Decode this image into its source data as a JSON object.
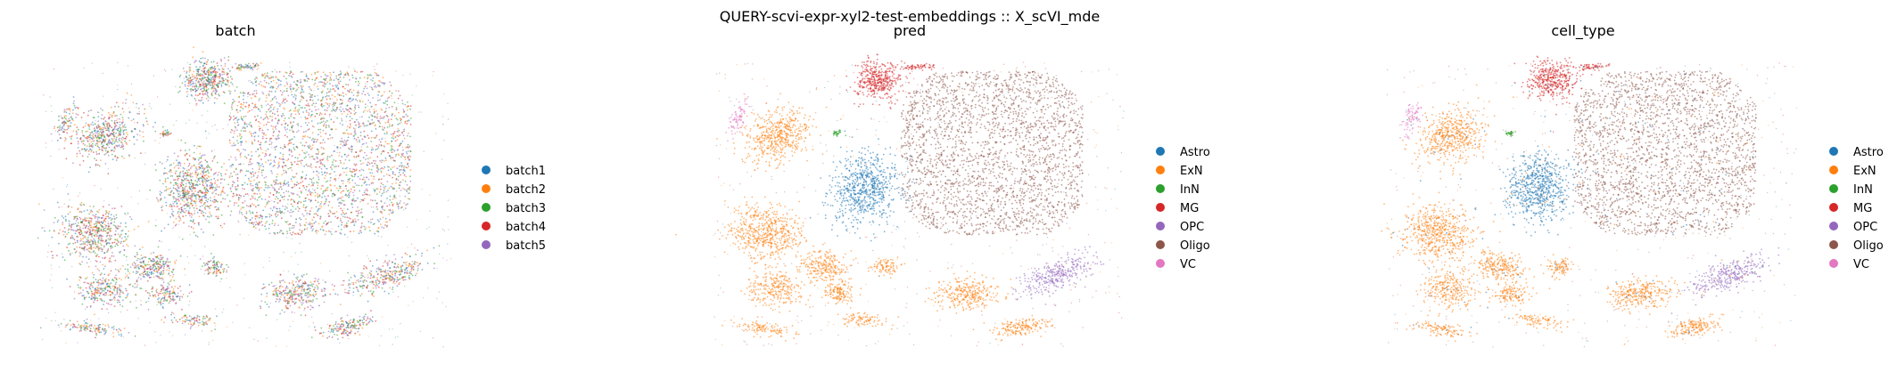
{
  "figure": {
    "suptitle": "QUERY-scvi-expr-xyl2-test-embeddings :: X_scVI_mde"
  },
  "palette": {
    "batch1": "#1f77b4",
    "batch2": "#ff7f0e",
    "batch3": "#2ca02c",
    "batch4": "#d62728",
    "batch5": "#9467bd",
    "Astro": "#1f77b4",
    "ExN": "#ff7f0e",
    "InN": "#2ca02c",
    "MG": "#d62728",
    "OPC": "#9467bd",
    "Oligo": "#8c564b",
    "VC": "#e377c2"
  },
  "chart_data": [
    {
      "type": "scatter",
      "title": "batch",
      "embedding": "X_scVI_mde",
      "axes_visible": false,
      "legend": {
        "placement": "right",
        "entries": [
          "batch1",
          "batch2",
          "batch3",
          "batch4",
          "batch5"
        ]
      }
    },
    {
      "type": "scatter",
      "title": "pred",
      "embedding": "X_scVI_mde",
      "axes_visible": false,
      "legend": {
        "placement": "right",
        "entries": [
          "Astro",
          "ExN",
          "InN",
          "MG",
          "OPC",
          "Oligo",
          "VC"
        ]
      }
    },
    {
      "type": "scatter",
      "title": "cell_type",
      "embedding": "X_scVI_mde",
      "axes_visible": false,
      "legend": {
        "placement": "right",
        "entries": [
          "Astro",
          "ExN",
          "InN",
          "MG",
          "OPC",
          "Oligo",
          "VC"
        ]
      }
    }
  ]
}
